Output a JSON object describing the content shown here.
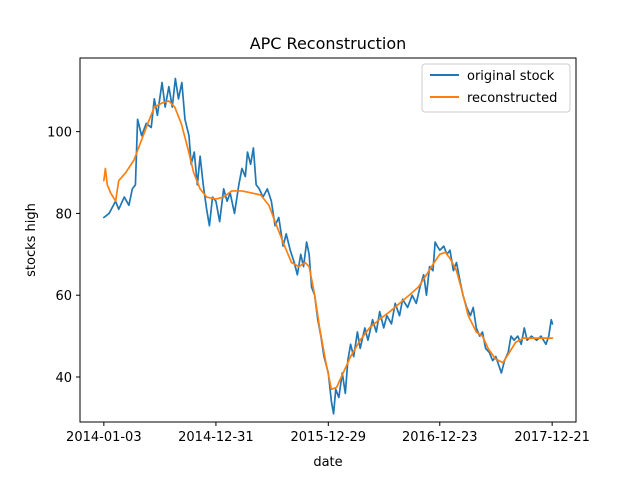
{
  "chart_data": {
    "type": "line",
    "title": "APC Reconstruction",
    "xlabel": "date",
    "ylabel": "stocks high",
    "x_ticks": [
      "2014-01-03",
      "2014-12-31",
      "2015-12-29",
      "2016-12-23",
      "2017-12-21"
    ],
    "y_ticks": [
      40,
      60,
      80,
      100
    ],
    "xlim": [
      "2013-10-18",
      "2018-03-08"
    ],
    "ylim": [
      29,
      118
    ],
    "grid": false,
    "legend_position": "upper right",
    "series": [
      {
        "name": "original stock",
        "color": "#1f77b4",
        "points": [
          [
            "2014-01-03",
            79
          ],
          [
            "2014-01-20",
            80
          ],
          [
            "2014-02-10",
            83
          ],
          [
            "2014-02-20",
            81
          ],
          [
            "2014-03-10",
            84
          ],
          [
            "2014-03-25",
            82
          ],
          [
            "2014-04-05",
            86
          ],
          [
            "2014-04-15",
            87
          ],
          [
            "2014-04-22",
            103
          ],
          [
            "2014-05-05",
            99
          ],
          [
            "2014-05-20",
            102
          ],
          [
            "2014-06-05",
            101
          ],
          [
            "2014-06-15",
            108
          ],
          [
            "2014-06-25",
            104
          ],
          [
            "2014-07-10",
            112
          ],
          [
            "2014-07-20",
            106
          ],
          [
            "2014-08-01",
            111
          ],
          [
            "2014-08-12",
            106
          ],
          [
            "2014-08-22",
            113
          ],
          [
            "2014-09-01",
            108
          ],
          [
            "2014-09-12",
            112
          ],
          [
            "2014-09-22",
            103
          ],
          [
            "2014-10-05",
            99
          ],
          [
            "2014-10-12",
            92
          ],
          [
            "2014-10-22",
            95
          ],
          [
            "2014-11-01",
            87
          ],
          [
            "2014-11-10",
            94
          ],
          [
            "2014-11-20",
            87
          ],
          [
            "2014-12-01",
            81
          ],
          [
            "2014-12-10",
            77
          ],
          [
            "2014-12-20",
            84
          ],
          [
            "2014-12-31",
            83
          ],
          [
            "2015-01-12",
            78
          ],
          [
            "2015-01-25",
            86
          ],
          [
            "2015-02-05",
            83
          ],
          [
            "2015-02-15",
            85
          ],
          [
            "2015-03-01",
            80
          ],
          [
            "2015-03-15",
            87
          ],
          [
            "2015-03-25",
            91
          ],
          [
            "2015-04-05",
            89
          ],
          [
            "2015-04-12",
            95
          ],
          [
            "2015-04-22",
            92
          ],
          [
            "2015-05-01",
            96
          ],
          [
            "2015-05-10",
            87
          ],
          [
            "2015-05-20",
            86
          ],
          [
            "2015-06-01",
            84
          ],
          [
            "2015-06-15",
            86
          ],
          [
            "2015-06-28",
            83
          ],
          [
            "2015-07-10",
            77
          ],
          [
            "2015-07-22",
            79
          ],
          [
            "2015-08-05",
            72
          ],
          [
            "2015-08-15",
            75
          ],
          [
            "2015-08-28",
            71
          ],
          [
            "2015-09-10",
            68
          ],
          [
            "2015-09-20",
            65
          ],
          [
            "2015-10-01",
            70
          ],
          [
            "2015-10-10",
            67
          ],
          [
            "2015-10-20",
            73
          ],
          [
            "2015-10-28",
            70
          ],
          [
            "2015-11-05",
            62
          ],
          [
            "2015-11-15",
            60
          ],
          [
            "2015-11-25",
            54
          ],
          [
            "2015-12-05",
            50
          ],
          [
            "2015-12-15",
            45
          ],
          [
            "2015-12-29",
            41
          ],
          [
            "2016-01-08",
            34
          ],
          [
            "2016-01-15",
            31
          ],
          [
            "2016-01-22",
            37
          ],
          [
            "2016-02-01",
            35
          ],
          [
            "2016-02-12",
            41
          ],
          [
            "2016-02-22",
            36
          ],
          [
            "2016-03-01",
            44
          ],
          [
            "2016-03-10",
            48
          ],
          [
            "2016-03-20",
            45
          ],
          [
            "2016-04-01",
            51
          ],
          [
            "2016-04-10",
            47
          ],
          [
            "2016-04-25",
            52
          ],
          [
            "2016-05-05",
            49
          ],
          [
            "2016-05-20",
            54
          ],
          [
            "2016-06-01",
            51
          ],
          [
            "2016-06-12",
            56
          ],
          [
            "2016-06-25",
            52
          ],
          [
            "2016-07-05",
            55
          ],
          [
            "2016-07-20",
            53
          ],
          [
            "2016-08-01",
            58
          ],
          [
            "2016-08-15",
            55
          ],
          [
            "2016-08-25",
            59
          ],
          [
            "2016-09-10",
            57
          ],
          [
            "2016-09-25",
            60
          ],
          [
            "2016-10-08",
            58
          ],
          [
            "2016-10-20",
            62
          ],
          [
            "2016-11-01",
            65
          ],
          [
            "2016-11-10",
            60
          ],
          [
            "2016-11-20",
            67
          ],
          [
            "2016-12-01",
            66
          ],
          [
            "2016-12-08",
            73
          ],
          [
            "2016-12-15",
            72
          ],
          [
            "2016-12-23",
            71
          ],
          [
            "2017-01-05",
            72
          ],
          [
            "2017-01-15",
            70
          ],
          [
            "2017-01-25",
            71
          ],
          [
            "2017-02-05",
            66
          ],
          [
            "2017-02-15",
            68
          ],
          [
            "2017-02-25",
            64
          ],
          [
            "2017-03-08",
            60
          ],
          [
            "2017-03-20",
            57
          ],
          [
            "2017-04-01",
            55
          ],
          [
            "2017-04-10",
            57
          ],
          [
            "2017-04-20",
            52
          ],
          [
            "2017-05-01",
            50
          ],
          [
            "2017-05-10",
            51
          ],
          [
            "2017-05-20",
            47
          ],
          [
            "2017-06-01",
            46
          ],
          [
            "2017-06-12",
            44
          ],
          [
            "2017-06-22",
            45
          ],
          [
            "2017-07-01",
            43
          ],
          [
            "2017-07-10",
            41
          ],
          [
            "2017-07-20",
            44
          ],
          [
            "2017-08-01",
            46
          ],
          [
            "2017-08-10",
            50
          ],
          [
            "2017-08-20",
            49
          ],
          [
            "2017-09-01",
            50
          ],
          [
            "2017-09-12",
            48
          ],
          [
            "2017-09-22",
            52
          ],
          [
            "2017-10-01",
            49
          ],
          [
            "2017-10-15",
            50
          ],
          [
            "2017-11-01",
            49
          ],
          [
            "2017-11-15",
            50
          ],
          [
            "2017-12-01",
            48
          ],
          [
            "2017-12-10",
            50
          ],
          [
            "2017-12-18",
            54
          ],
          [
            "2017-12-22",
            53
          ]
        ]
      },
      {
        "name": "reconstructed",
        "color": "#ff7f0e",
        "points": [
          [
            "2014-01-03",
            88
          ],
          [
            "2014-01-08",
            91
          ],
          [
            "2014-01-14",
            87
          ],
          [
            "2014-01-25",
            85
          ],
          [
            "2014-02-10",
            83
          ],
          [
            "2014-02-20",
            88
          ],
          [
            "2014-03-15",
            90
          ],
          [
            "2014-04-10",
            93
          ],
          [
            "2014-05-05",
            98
          ],
          [
            "2014-05-25",
            102
          ],
          [
            "2014-06-15",
            106
          ],
          [
            "2014-07-10",
            107
          ],
          [
            "2014-08-01",
            107.5
          ],
          [
            "2014-08-20",
            106
          ],
          [
            "2014-09-10",
            102
          ],
          [
            "2014-10-01",
            96
          ],
          [
            "2014-10-20",
            90
          ],
          [
            "2014-11-10",
            86
          ],
          [
            "2014-12-01",
            84
          ],
          [
            "2014-12-31",
            83.5
          ],
          [
            "2015-01-25",
            84
          ],
          [
            "2015-02-20",
            85.5
          ],
          [
            "2015-03-25",
            85.5
          ],
          [
            "2015-04-25",
            85
          ],
          [
            "2015-05-25",
            84.5
          ],
          [
            "2015-06-20",
            82
          ],
          [
            "2015-07-15",
            77
          ],
          [
            "2015-08-10",
            72
          ],
          [
            "2015-09-01",
            68
          ],
          [
            "2015-09-25",
            67
          ],
          [
            "2015-10-15",
            68
          ],
          [
            "2015-10-28",
            67
          ],
          [
            "2015-11-15",
            60
          ],
          [
            "2015-12-01",
            52
          ],
          [
            "2015-12-20",
            44
          ],
          [
            "2016-01-08",
            37
          ],
          [
            "2016-01-25",
            37.5
          ],
          [
            "2016-02-15",
            41
          ],
          [
            "2016-03-10",
            45
          ],
          [
            "2016-04-10",
            49
          ],
          [
            "2016-05-10",
            52
          ],
          [
            "2016-06-10",
            54
          ],
          [
            "2016-07-15",
            56
          ],
          [
            "2016-08-15",
            58
          ],
          [
            "2016-09-15",
            60
          ],
          [
            "2016-10-15",
            62
          ],
          [
            "2016-11-10",
            65
          ],
          [
            "2016-12-05",
            68
          ],
          [
            "2016-12-23",
            70
          ],
          [
            "2017-01-10",
            70.5
          ],
          [
            "2017-01-25",
            69
          ],
          [
            "2017-02-15",
            66
          ],
          [
            "2017-03-05",
            61
          ],
          [
            "2017-03-25",
            55
          ],
          [
            "2017-04-20",
            51
          ],
          [
            "2017-05-10",
            50
          ],
          [
            "2017-05-28",
            47
          ],
          [
            "2017-06-20",
            44.5
          ],
          [
            "2017-07-15",
            43.5
          ],
          [
            "2017-08-05",
            46
          ],
          [
            "2017-08-25",
            48.5
          ],
          [
            "2017-09-20",
            49.5
          ],
          [
            "2017-10-20",
            49.5
          ],
          [
            "2017-11-20",
            49.5
          ],
          [
            "2017-12-22",
            49.5
          ]
        ]
      }
    ]
  }
}
